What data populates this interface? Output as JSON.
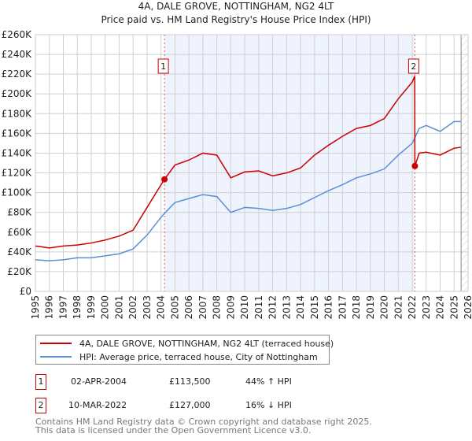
{
  "title_line1": "4A, DALE GROVE, NOTTINGHAM, NG2 4LT",
  "title_line2": "Price paid vs. HM Land Registry's House Price Index (HPI)",
  "chart_data": {
    "type": "line",
    "title": "4A, DALE GROVE, NOTTINGHAM, NG2 4LT — Price paid vs. HM Land Registry's House Price Index (HPI)",
    "xlim": [
      1995,
      2026
    ],
    "ylim": [
      0,
      260000
    ],
    "grid": true,
    "y_ticks": [
      0,
      20000,
      40000,
      60000,
      80000,
      100000,
      120000,
      140000,
      160000,
      180000,
      200000,
      220000,
      240000,
      260000
    ],
    "y_tick_labels": [
      "£0",
      "£20K",
      "£40K",
      "£60K",
      "£80K",
      "£100K",
      "£120K",
      "£140K",
      "£160K",
      "£180K",
      "£200K",
      "£220K",
      "£240K",
      "£260K"
    ],
    "x_tick_labels": [
      "1995",
      "1996",
      "1997",
      "1998",
      "1999",
      "2000",
      "2001",
      "2002",
      "2003",
      "2004",
      "2005",
      "2006",
      "2007",
      "2008",
      "2009",
      "2010",
      "2011",
      "2012",
      "2013",
      "2014",
      "2015",
      "2016",
      "2017",
      "2018",
      "2019",
      "2020",
      "2021",
      "2022",
      "2023",
      "2024",
      "2025",
      "2026"
    ],
    "series": [
      {
        "name": "4A, DALE GROVE, NOTTINGHAM, NG2 4LT (terraced house)",
        "color": "#cc0000",
        "x": [
          1995,
          1996,
          1997,
          1998,
          1999,
          2000,
          2001,
          2002,
          2003,
          2004,
          2004.25,
          2005,
          2006,
          2007,
          2008,
          2009,
          2010,
          2011,
          2012,
          2013,
          2014,
          2015,
          2016,
          2017,
          2018,
          2019,
          2020,
          2021,
          2022,
          2022.18,
          2022.19,
          2022.5,
          2023,
          2024,
          2025,
          2025.5
        ],
        "y": [
          46000,
          44000,
          46000,
          47000,
          49000,
          52000,
          56000,
          62000,
          85000,
          108000,
          113500,
          128000,
          133000,
          140000,
          138000,
          115000,
          121000,
          122000,
          117000,
          120000,
          125000,
          138000,
          148000,
          157000,
          165000,
          168000,
          175000,
          195000,
          212000,
          218000,
          127000,
          140000,
          141000,
          138000,
          145000,
          146000
        ]
      },
      {
        "name": "HPI: Average price, terraced house, City of Nottingham",
        "color": "#5b8fd4",
        "x": [
          1995,
          1996,
          1997,
          1998,
          1999,
          2000,
          2001,
          2002,
          2003,
          2004,
          2004.25,
          2005,
          2006,
          2007,
          2008,
          2009,
          2010,
          2011,
          2012,
          2013,
          2014,
          2015,
          2016,
          2017,
          2018,
          2019,
          2020,
          2021,
          2022,
          2022.5,
          2023,
          2024,
          2025,
          2025.5
        ],
        "y": [
          32000,
          31000,
          32000,
          34000,
          34000,
          36000,
          38000,
          43000,
          57000,
          75000,
          79000,
          90000,
          94000,
          98000,
          96000,
          80000,
          85000,
          84000,
          82000,
          84000,
          88000,
          95000,
          102000,
          108000,
          115000,
          119000,
          124000,
          138000,
          150000,
          165000,
          168000,
          162000,
          172000,
          172000
        ]
      }
    ],
    "sales": [
      {
        "label": "1",
        "year": 2004.25,
        "price": 113500
      },
      {
        "label": "2",
        "year": 2022.19,
        "price": 127000
      }
    ],
    "data_end_year": 2025.5,
    "legend_placement": "below"
  },
  "legend": {
    "items": [
      {
        "label": "4A, DALE GROVE, NOTTINGHAM, NG2 4LT (terraced house)",
        "color": "#cc0000"
      },
      {
        "label": "HPI: Average price, terraced house, City of Nottingham",
        "color": "#5b8fd4"
      }
    ]
  },
  "transactions": [
    {
      "num": "1",
      "date": "02-APR-2004",
      "price": "£113,500",
      "hpi": "44% ↑ HPI"
    },
    {
      "num": "2",
      "date": "10-MAR-2022",
      "price": "£127,000",
      "hpi": "16% ↓ HPI"
    }
  ],
  "footer": {
    "line1": "Contains HM Land Registry data © Crown copyright and database right 2025.",
    "line2": "This data is licensed under the Open Government Licence v3.0."
  }
}
